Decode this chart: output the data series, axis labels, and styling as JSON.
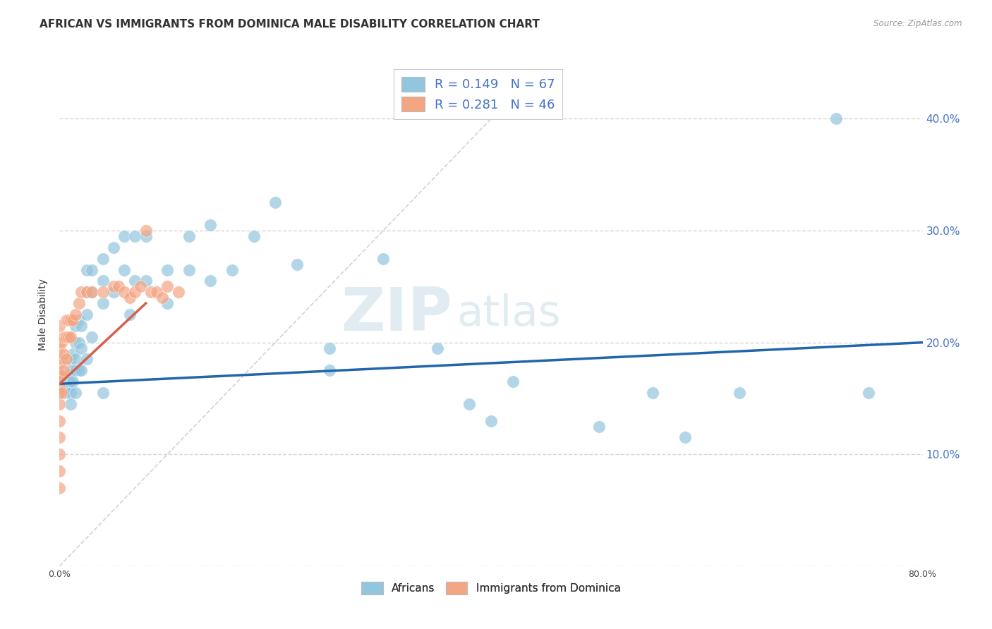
{
  "title": "AFRICAN VS IMMIGRANTS FROM DOMINICA MALE DISABILITY CORRELATION CHART",
  "source": "Source: ZipAtlas.com",
  "ylabel": "Male Disability",
  "watermark_zip": "ZIP",
  "watermark_atlas": "atlas",
  "legend_r1": "R = 0.149",
  "legend_n1": "N = 67",
  "legend_r2": "R = 0.281",
  "legend_n2": "N = 46",
  "xlim": [
    0.0,
    0.8
  ],
  "ylim": [
    0.0,
    0.45
  ],
  "xticks": [
    0.0,
    0.1,
    0.2,
    0.3,
    0.4,
    0.5,
    0.6,
    0.7,
    0.8
  ],
  "yticks": [
    0.0,
    0.1,
    0.2,
    0.3,
    0.4
  ],
  "color_blue": "#92c5de",
  "color_pink": "#f4a582",
  "color_blue_line": "#2166ac",
  "color_pink_line": "#d6604d",
  "color_diag": "#ccaaaa",
  "africans_x": [
    0.005,
    0.005,
    0.005,
    0.008,
    0.008,
    0.01,
    0.01,
    0.01,
    0.01,
    0.01,
    0.012,
    0.012,
    0.012,
    0.015,
    0.015,
    0.015,
    0.015,
    0.015,
    0.018,
    0.018,
    0.018,
    0.02,
    0.02,
    0.02,
    0.025,
    0.025,
    0.025,
    0.025,
    0.03,
    0.03,
    0.03,
    0.04,
    0.04,
    0.04,
    0.04,
    0.05,
    0.05,
    0.06,
    0.06,
    0.065,
    0.07,
    0.07,
    0.08,
    0.08,
    0.1,
    0.1,
    0.12,
    0.12,
    0.14,
    0.14,
    0.16,
    0.18,
    0.2,
    0.22,
    0.25,
    0.25,
    0.3,
    0.35,
    0.38,
    0.4,
    0.42,
    0.5,
    0.55,
    0.58,
    0.63,
    0.72,
    0.75
  ],
  "africans_y": [
    0.17,
    0.16,
    0.155,
    0.165,
    0.16,
    0.185,
    0.175,
    0.165,
    0.155,
    0.145,
    0.19,
    0.175,
    0.165,
    0.215,
    0.2,
    0.185,
    0.175,
    0.155,
    0.22,
    0.2,
    0.175,
    0.215,
    0.195,
    0.175,
    0.265,
    0.245,
    0.225,
    0.185,
    0.265,
    0.245,
    0.205,
    0.275,
    0.255,
    0.235,
    0.155,
    0.285,
    0.245,
    0.295,
    0.265,
    0.225,
    0.295,
    0.255,
    0.295,
    0.255,
    0.265,
    0.235,
    0.295,
    0.265,
    0.305,
    0.255,
    0.265,
    0.295,
    0.325,
    0.27,
    0.195,
    0.175,
    0.275,
    0.195,
    0.145,
    0.13,
    0.165,
    0.125,
    0.155,
    0.115,
    0.155,
    0.4,
    0.155
  ],
  "dominica_x": [
    0.0,
    0.0,
    0.0,
    0.0,
    0.0,
    0.0,
    0.0,
    0.0,
    0.0,
    0.0,
    0.0,
    0.0,
    0.0,
    0.002,
    0.002,
    0.002,
    0.002,
    0.004,
    0.004,
    0.004,
    0.006,
    0.006,
    0.006,
    0.008,
    0.008,
    0.01,
    0.01,
    0.012,
    0.015,
    0.018,
    0.02,
    0.025,
    0.03,
    0.04,
    0.05,
    0.055,
    0.06,
    0.065,
    0.07,
    0.075,
    0.08,
    0.085,
    0.09,
    0.095,
    0.1,
    0.11
  ],
  "dominica_y": [
    0.215,
    0.2,
    0.19,
    0.18,
    0.17,
    0.16,
    0.155,
    0.145,
    0.13,
    0.115,
    0.1,
    0.085,
    0.07,
    0.2,
    0.185,
    0.17,
    0.155,
    0.205,
    0.19,
    0.175,
    0.22,
    0.205,
    0.185,
    0.22,
    0.205,
    0.22,
    0.205,
    0.22,
    0.225,
    0.235,
    0.245,
    0.245,
    0.245,
    0.245,
    0.25,
    0.25,
    0.245,
    0.24,
    0.245,
    0.25,
    0.3,
    0.245,
    0.245,
    0.24,
    0.25,
    0.245
  ],
  "blue_trend_x0": 0.0,
  "blue_trend_y0": 0.163,
  "blue_trend_x1": 0.8,
  "blue_trend_y1": 0.2,
  "pink_trend_x0": 0.0,
  "pink_trend_y0": 0.163,
  "pink_trend_x1": 0.08,
  "pink_trend_y1": 0.235,
  "title_fontsize": 11,
  "axis_label_fontsize": 10,
  "tick_fontsize": 9,
  "legend_fontsize": 13
}
